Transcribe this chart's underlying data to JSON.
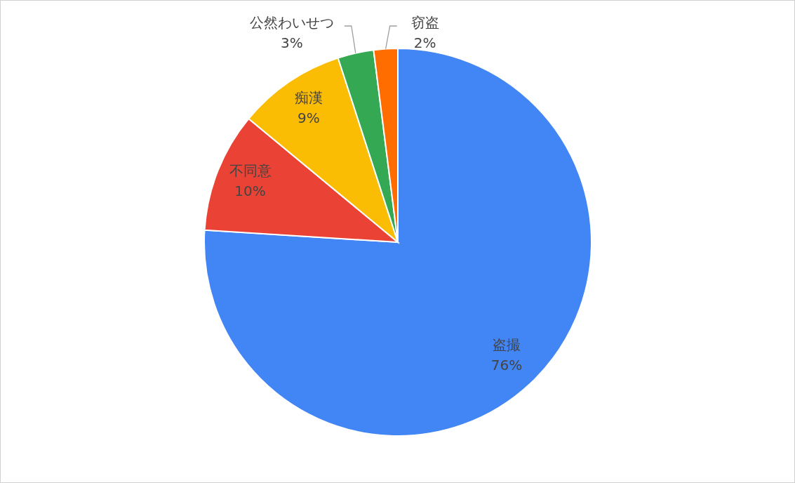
{
  "chart_data": {
    "type": "pie",
    "categories": [
      "盗撮",
      "不同意",
      "痴漢",
      "公然わいせつ",
      "窃盗"
    ],
    "values": [
      76,
      10,
      9,
      3,
      2
    ],
    "colors": [
      "#4285f4",
      "#ea4335",
      "#fbbc04",
      "#34a853",
      "#ff6d01"
    ],
    "value_labels": [
      "76%",
      "10%",
      "9%",
      "3%",
      "2%"
    ]
  }
}
